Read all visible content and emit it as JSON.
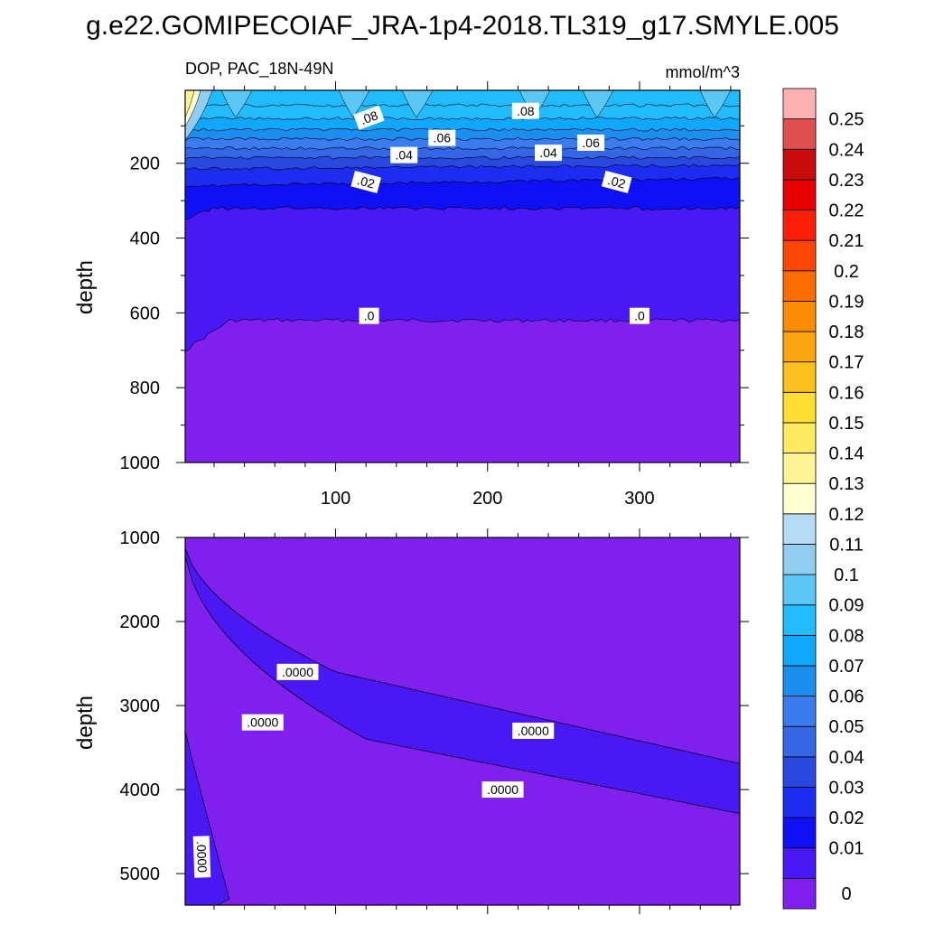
{
  "title": "g.e22.GOMIPECOIAF_JRA-1p4-2018.TL319_g17.SMYLE.005",
  "colorbar": {
    "labels": [
      "0",
      "0.01",
      "0.02",
      "0.03",
      "0.04",
      "0.05",
      "0.06",
      "0.07",
      "0.08",
      "0.09",
      "0.1",
      "0.11",
      "0.12",
      "0.13",
      "0.14",
      "0.15",
      "0.16",
      "0.17",
      "0.18",
      "0.19",
      "0.2",
      "0.21",
      "0.22",
      "0.23",
      "0.24",
      "0.25"
    ],
    "colors": [
      "#8020f0",
      "#4a18f5",
      "#1010f5",
      "#1c2cf0",
      "#2848e0",
      "#3466e6",
      "#3a7cf0",
      "#1c8ef0",
      "#10a8ff",
      "#20bcff",
      "#5cc6f5",
      "#90cdf0",
      "#b4dcf4",
      "#fefed0",
      "#fef496",
      "#feea60",
      "#fede30",
      "#fcc01c",
      "#fca510",
      "#fc8c04",
      "#fc6c00",
      "#fc4804",
      "#fc2008",
      "#e80000",
      "#c80c0c",
      "#e05050",
      "#fcb0b0"
    ]
  },
  "chart_data": [
    {
      "type": "contour",
      "panel": "upper",
      "left_title": "DOP, PAC_18N-49N",
      "right_title": "mmol/m^3",
      "ylabel": "depth",
      "xlabel": "",
      "xlim": [
        1,
        366
      ],
      "ylim": [
        1000,
        5
      ],
      "x_ticks": [
        "100",
        "200",
        "300"
      ],
      "y_ticks": [
        "200",
        "400",
        "600",
        "800",
        "1000"
      ],
      "contour_labels": [
        {
          "text": ".08",
          "x": 122,
          "depth": 78
        },
        {
          "text": ".08",
          "x": 225,
          "depth": 60
        },
        {
          "text": ".06",
          "x": 170,
          "depth": 132
        },
        {
          "text": ".06",
          "x": 268,
          "depth": 145
        },
        {
          "text": ".04",
          "x": 145,
          "depth": 178
        },
        {
          "text": ".04",
          "x": 240,
          "depth": 172
        },
        {
          "text": ".02",
          "x": 120,
          "depth": 250
        },
        {
          "text": ".02",
          "x": 285,
          "depth": 250
        },
        {
          "text": ".0",
          "x": 122,
          "depth": 608
        },
        {
          "text": ".0",
          "x": 300,
          "depth": 608
        }
      ]
    },
    {
      "type": "contour",
      "panel": "lower",
      "ylabel": "depth",
      "xlim": [
        1,
        366
      ],
      "ylim": [
        5375,
        1000
      ],
      "y_ticks": [
        "1000",
        "2000",
        "3000",
        "4000",
        "5000"
      ],
      "contour_labels": [
        {
          "text": ".0000",
          "x": 75,
          "depth": 2600
        },
        {
          "text": ".0000",
          "x": 52,
          "depth": 3200
        },
        {
          "text": ".0000",
          "x": 230,
          "depth": 3300
        },
        {
          "text": ".0000",
          "x": 210,
          "depth": 4000
        },
        {
          "text": ".0000",
          "x": 12,
          "depth": 4800
        }
      ]
    }
  ]
}
